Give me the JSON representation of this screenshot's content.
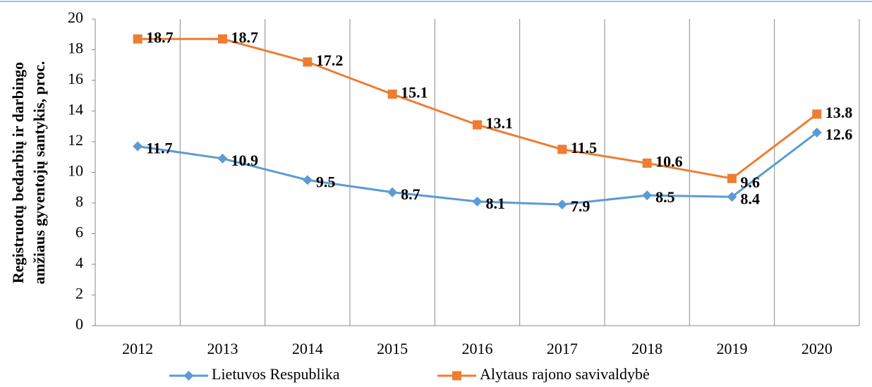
{
  "chart_data": {
    "type": "line",
    "ylabel": [
      "Registruotų bedarbių ir darbingo",
      "amžiaus gyventojų santykis, proc."
    ],
    "categories": [
      "2012",
      "2013",
      "2014",
      "2015",
      "2016",
      "2017",
      "2018",
      "2019",
      "2020"
    ],
    "series": [
      {
        "name": "Lietuvos Respublika",
        "color": "#5b9bd5",
        "marker": "diamond",
        "values": [
          11.7,
          10.9,
          9.5,
          8.7,
          8.1,
          7.9,
          8.5,
          8.4,
          12.6
        ]
      },
      {
        "name": "Alytaus rajono savivaldybė",
        "color": "#ed7d31",
        "marker": "square",
        "values": [
          18.7,
          18.7,
          17.2,
          15.1,
          13.1,
          11.5,
          10.6,
          9.6,
          13.8
        ]
      }
    ],
    "ylim": [
      0,
      20
    ],
    "yticks": [
      0,
      2,
      4,
      6,
      8,
      10,
      12,
      14,
      16,
      18,
      20
    ],
    "grid": "vertical",
    "legend": "bottom"
  }
}
